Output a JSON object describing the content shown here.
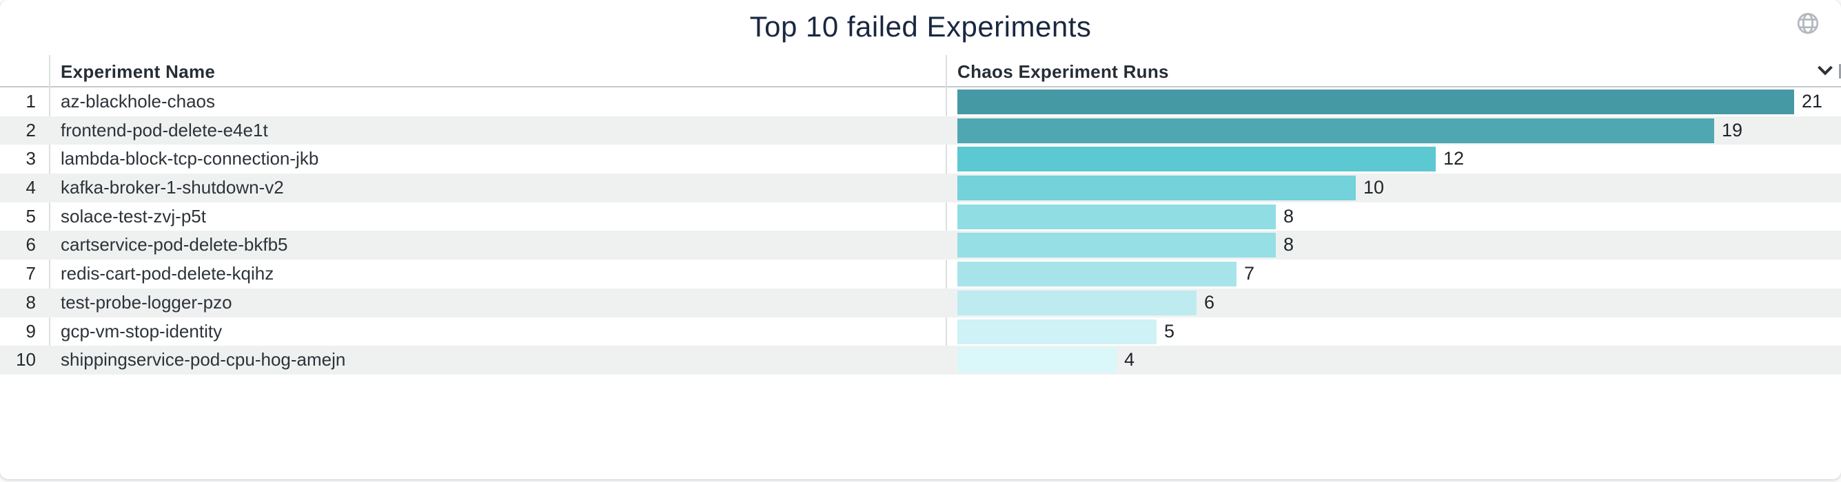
{
  "widget": {
    "title": "Top 10 failed Experiments"
  },
  "table": {
    "columns": [
      {
        "label": "Experiment Name"
      },
      {
        "label": "Chaos Experiment Runs"
      }
    ]
  },
  "chart_data": {
    "type": "bar",
    "orientation": "horizontal",
    "title": "Top 10 failed Experiments",
    "ranks": [
      1,
      2,
      3,
      4,
      5,
      6,
      7,
      8,
      9,
      10
    ],
    "categories": [
      "az-blackhole-chaos",
      "frontend-pod-delete-e4e1t",
      "lambda-block-tcp-connection-jkb",
      "kafka-broker-1-shutdown-v2",
      "solace-test-zvj-p5t",
      "cartservice-pod-delete-bkfb5",
      "redis-cart-pod-delete-kqihz",
      "test-probe-logger-pzo",
      "gcp-vm-stop-identity",
      "shippingservice-pod-cpu-hog-amejn"
    ],
    "values": [
      21,
      19,
      12,
      10,
      8,
      8,
      7,
      6,
      5,
      4
    ],
    "xlim": [
      0,
      21
    ],
    "value_labels_shown": true,
    "legend": "none",
    "grid": "off",
    "bar_colors": [
      "#4599a4",
      "#4fa7b1",
      "#5cc8d2",
      "#73d2da",
      "#90dde4",
      "#96dfe5",
      "#a7e4ea",
      "#bdebf0",
      "#cef2f5",
      "#daf7f9"
    ]
  },
  "icons": {
    "globe": "globe-icon",
    "sort": "chevron-down-icon"
  },
  "colors": {
    "card_bg": "#ffffff",
    "title_text": "#1a2740",
    "header_text": "#262d34",
    "body_text": "#2d3339",
    "rank_text": "#23282d",
    "value_text": "#1f2428",
    "row_alt_bg": "#eff1f1",
    "divider": "#dcdee0",
    "header_rule": "#c6c9cc",
    "globe_icon": "#b3b8c1",
    "chevron_icon": "#2b3137"
  }
}
